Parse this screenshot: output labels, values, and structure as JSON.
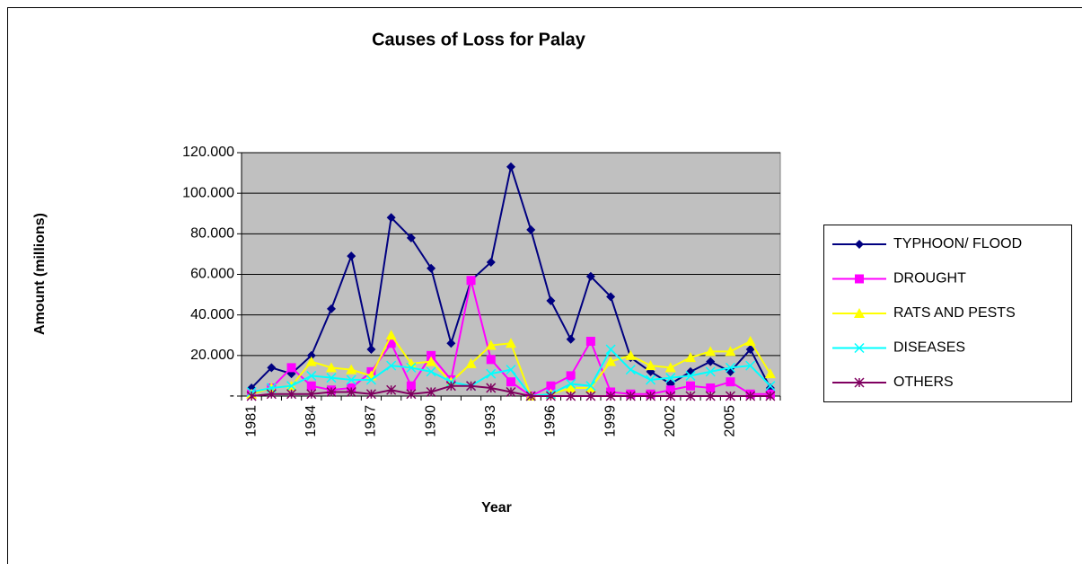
{
  "chart_data": {
    "type": "line",
    "title": "Causes of Loss for Palay",
    "x_label": "Year",
    "y_label": "Amount (millions)",
    "categories": [
      "1981",
      null,
      null,
      "1984",
      null,
      null,
      "1987",
      null,
      null,
      "1990",
      null,
      null,
      "1993",
      null,
      null,
      "1996",
      null,
      null,
      "1999",
      null,
      null,
      "2002",
      null,
      null,
      "2005",
      null,
      null
    ],
    "series": [
      {
        "name": "TYPHOON/ FLOOD",
        "color": "#000080",
        "marker": "diamond",
        "values": [
          4,
          14,
          11,
          20,
          43,
          69,
          23,
          88,
          78,
          63,
          26,
          57,
          66,
          113,
          82,
          47,
          28,
          59,
          49,
          19,
          12,
          6,
          12,
          17,
          12,
          23,
          4
        ]
      },
      {
        "name": "DROUGHT",
        "color": "#ff00ff",
        "marker": "square",
        "values": [
          1,
          4,
          14,
          5,
          3,
          4,
          12,
          26,
          5,
          20,
          8,
          57,
          18,
          7,
          0,
          5,
          10,
          27,
          2,
          1,
          1,
          3,
          5,
          4,
          7,
          1,
          1
        ]
      },
      {
        "name": "RATS AND PESTS",
        "color": "#ffff00",
        "marker": "triangle",
        "values": [
          1,
          4,
          5,
          17,
          14,
          13,
          10,
          30,
          16,
          17,
          7,
          16,
          25,
          26,
          0,
          1,
          4,
          4,
          17,
          20,
          15,
          14,
          19,
          22,
          22,
          27,
          11
        ]
      },
      {
        "name": "DISEASES",
        "color": "#00ffff",
        "marker": "x",
        "values": [
          2,
          4,
          5,
          10,
          9,
          8,
          8,
          15,
          14,
          12,
          7,
          5,
          11,
          13,
          0,
          1,
          6,
          5,
          23,
          13,
          8,
          9,
          10,
          12,
          14,
          15,
          5
        ]
      },
      {
        "name": "OTHERS",
        "color": "#800060",
        "marker": "star",
        "values": [
          0,
          1,
          1,
          1,
          2,
          2,
          1,
          3,
          1,
          2,
          5,
          5,
          4,
          2,
          0,
          0,
          0,
          0,
          0,
          0,
          0,
          0,
          0,
          0,
          0,
          0,
          0
        ]
      }
    ],
    "ylim": [
      0,
      120
    ],
    "yticks": [
      {
        "value": 0,
        "label": "-"
      },
      {
        "value": 20,
        "label": "20.000"
      },
      {
        "value": 40,
        "label": "40.000"
      },
      {
        "value": 60,
        "label": "60.000"
      },
      {
        "value": 80,
        "label": "80.000"
      },
      {
        "value": 100,
        "label": "100.000"
      },
      {
        "value": 120,
        "label": "120.000"
      }
    ],
    "grid": true,
    "legend": "right"
  }
}
